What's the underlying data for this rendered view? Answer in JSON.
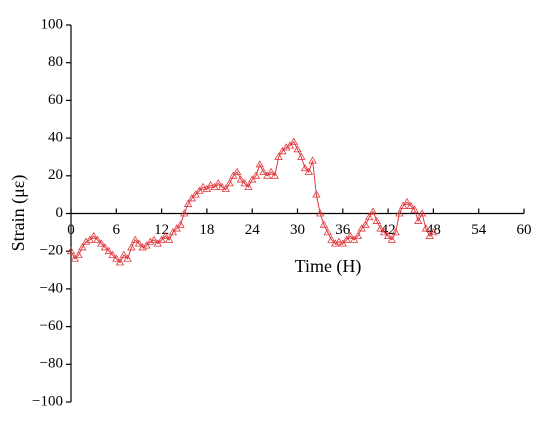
{
  "chart_data": {
    "type": "line",
    "xlabel": "Time (H)",
    "ylabel": "Strain (με)",
    "color": "#e0393e",
    "x": [
      0,
      0.5,
      1,
      1.5,
      2,
      2.5,
      3,
      3.5,
      4,
      4.5,
      5,
      5.5,
      6,
      6.5,
      7,
      7.5,
      8,
      8.5,
      9,
      9.5,
      10,
      10.5,
      11,
      11.5,
      12,
      12.5,
      13,
      13.5,
      14,
      14.5,
      15,
      15.5,
      16,
      16.5,
      17,
      17.5,
      18,
      18.5,
      19,
      19.5,
      20,
      20.5,
      21,
      21.5,
      22,
      22.5,
      23,
      23.5,
      24,
      24.5,
      25,
      25.5,
      26,
      26.5,
      27,
      27.5,
      28,
      28.5,
      29,
      29.5,
      30,
      30.5,
      31,
      31.5,
      32,
      32.5,
      33,
      33.5,
      34,
      34.5,
      35,
      35.5,
      36,
      36.5,
      37,
      37.5,
      38,
      38.5,
      39,
      39.5,
      40,
      40.5,
      41,
      41.5,
      42,
      42.5,
      43,
      43.5,
      44,
      44.5,
      45,
      45.5,
      46,
      46.5,
      47,
      47.5,
      48
    ],
    "values": [
      -20,
      -24,
      -22,
      -18,
      -15,
      -14,
      -12,
      -14,
      -16,
      -18,
      -20,
      -22,
      -24,
      -26,
      -22,
      -24,
      -18,
      -14,
      -16,
      -18,
      -17,
      -15,
      -14,
      -16,
      -14,
      -12,
      -14,
      -10,
      -8,
      -6,
      0,
      5,
      8,
      10,
      12,
      14,
      13,
      15,
      14,
      16,
      14,
      13,
      16,
      20,
      22,
      18,
      16,
      14,
      18,
      20,
      26,
      22,
      20,
      22,
      20,
      30,
      33,
      35,
      36,
      38,
      34,
      30,
      24,
      22,
      28,
      10,
      0,
      -6,
      -10,
      -14,
      -16,
      -15,
      -16,
      -14,
      -12,
      -14,
      -12,
      -8,
      -6,
      -2,
      1,
      -4,
      -8,
      -10,
      -12,
      -14,
      -10,
      0,
      4,
      6,
      4,
      2,
      -4,
      0,
      -8,
      -12,
      -10
    ],
    "xlim": [
      0,
      60
    ],
    "xticks": [
      0,
      6,
      12,
      18,
      24,
      30,
      36,
      42,
      48,
      54,
      60
    ],
    "ylim": [
      -100,
      100
    ],
    "yticks": [
      {
        "value": -100,
        "label": "−100"
      },
      {
        "value": -80,
        "label": "−80"
      },
      {
        "value": -60,
        "label": "−60"
      },
      {
        "value": -40,
        "label": "−40"
      },
      {
        "value": -20,
        "label": "−20"
      },
      0,
      20,
      40,
      60,
      80,
      100
    ]
  }
}
